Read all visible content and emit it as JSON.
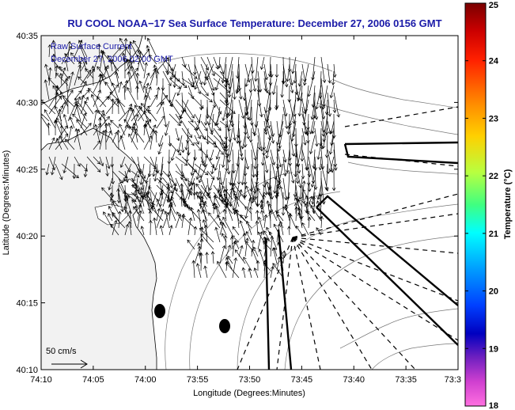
{
  "title": "RU COOL  NOAA−17  Sea Surface Temperature:  December 27, 2006 0156 GMT",
  "legend": {
    "line1": "Raw Surface Current",
    "line2": "December 27, 2006 02:00 GMT"
  },
  "scale_label": "50 cm/s",
  "xlabel": "Longitude (Degrees:Minutes)",
  "ylabel": "Latitude (Degrees:Minutes)",
  "x_ticks": [
    "74:10",
    "74:05",
    "74:00",
    "73:55",
    "73:50",
    "73:45",
    "73:40",
    "73:35",
    "73:3"
  ],
  "y_ticks": [
    "40:35",
    "40:30",
    "40:25",
    "40:20",
    "40:15",
    "40:10"
  ],
  "colorbar": {
    "label": "Temperature (°C)",
    "ticks": [
      "25",
      "24",
      "23",
      "22",
      "21",
      "20",
      "19",
      "18"
    ],
    "min": 18,
    "max": 25
  },
  "colors": {
    "title": "#1a1aa8",
    "legend_text": "#1a1aa8",
    "land": "#f2f2f2",
    "water": "#ffffff"
  }
}
